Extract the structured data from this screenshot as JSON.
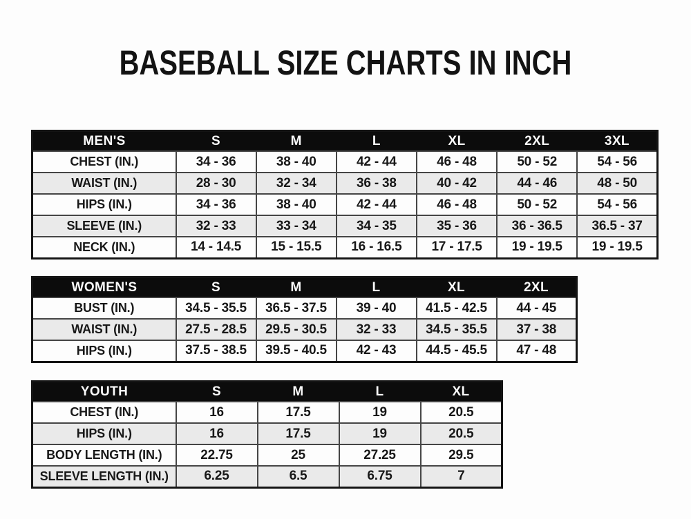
{
  "page": {
    "title": "BASEBALL SIZE CHARTS IN INCH",
    "colors": {
      "page-bg": "#fdfdfd",
      "title-text": "#131313",
      "header-bg": "#0c0c0c",
      "header-text": "#fbfbfb",
      "cell-border": "#454545",
      "table-frame": "#141414",
      "row-bg": "#fdfdfd",
      "row-alt-bg": "#eaeaea",
      "cell-text": "#181818"
    }
  },
  "chart_data": [
    {
      "type": "table",
      "title": "MEN'S",
      "columns": [
        "S",
        "M",
        "L",
        "XL",
        "2XL",
        "3XL"
      ],
      "rows": [
        {
          "label": "CHEST (IN.)",
          "values": [
            "34 - 36",
            "38 - 40",
            "42 - 44",
            "46 - 48",
            "50 - 52",
            "54 - 56"
          ]
        },
        {
          "label": "WAIST (IN.)",
          "values": [
            "28 - 30",
            "32 - 34",
            "36 - 38",
            "40 - 42",
            "44 - 46",
            "48 - 50"
          ]
        },
        {
          "label": "HIPS (IN.)",
          "values": [
            "34 - 36",
            "38 - 40",
            "42 - 44",
            "46 - 48",
            "50 - 52",
            "54 - 56"
          ]
        },
        {
          "label": "SLEEVE (IN.)",
          "values": [
            "32 - 33",
            "33 - 34",
            "34 - 35",
            "35 - 36",
            "36 - 36.5",
            "36.5 - 37"
          ]
        },
        {
          "label": "NECK (IN.)",
          "values": [
            "14 - 14.5",
            "15 - 15.5",
            "16 - 16.5",
            "17 - 17.5",
            "19 - 19.5",
            "19 - 19.5"
          ]
        }
      ]
    },
    {
      "type": "table",
      "title": "WOMEN'S",
      "columns": [
        "S",
        "M",
        "L",
        "XL",
        "2XL"
      ],
      "rows": [
        {
          "label": "BUST (IN.)",
          "values": [
            "34.5 - 35.5",
            "36.5 - 37.5",
            "39 - 40",
            "41.5 - 42.5",
            "44 - 45"
          ]
        },
        {
          "label": "WAIST (IN.)",
          "values": [
            "27.5 - 28.5",
            "29.5 - 30.5",
            "32 - 33",
            "34.5 - 35.5",
            "37 - 38"
          ]
        },
        {
          "label": "HIPS (IN.)",
          "values": [
            "37.5 - 38.5",
            "39.5 - 40.5",
            "42 - 43",
            "44.5 - 45.5",
            "47 - 48"
          ]
        }
      ]
    },
    {
      "type": "table",
      "title": "YOUTH",
      "columns": [
        "S",
        "M",
        "L",
        "XL"
      ],
      "rows": [
        {
          "label": "CHEST (IN.)",
          "values": [
            "16",
            "17.5",
            "19",
            "20.5"
          ]
        },
        {
          "label": "HIPS (IN.)",
          "values": [
            "16",
            "17.5",
            "19",
            "20.5"
          ]
        },
        {
          "label": "BODY LENGTH (IN.)",
          "values": [
            "22.75",
            "25",
            "27.25",
            "29.5"
          ]
        },
        {
          "label": "SLEEVE LENGTH (IN.)",
          "values": [
            "6.25",
            "6.5",
            "6.75",
            "7"
          ]
        }
      ]
    }
  ]
}
